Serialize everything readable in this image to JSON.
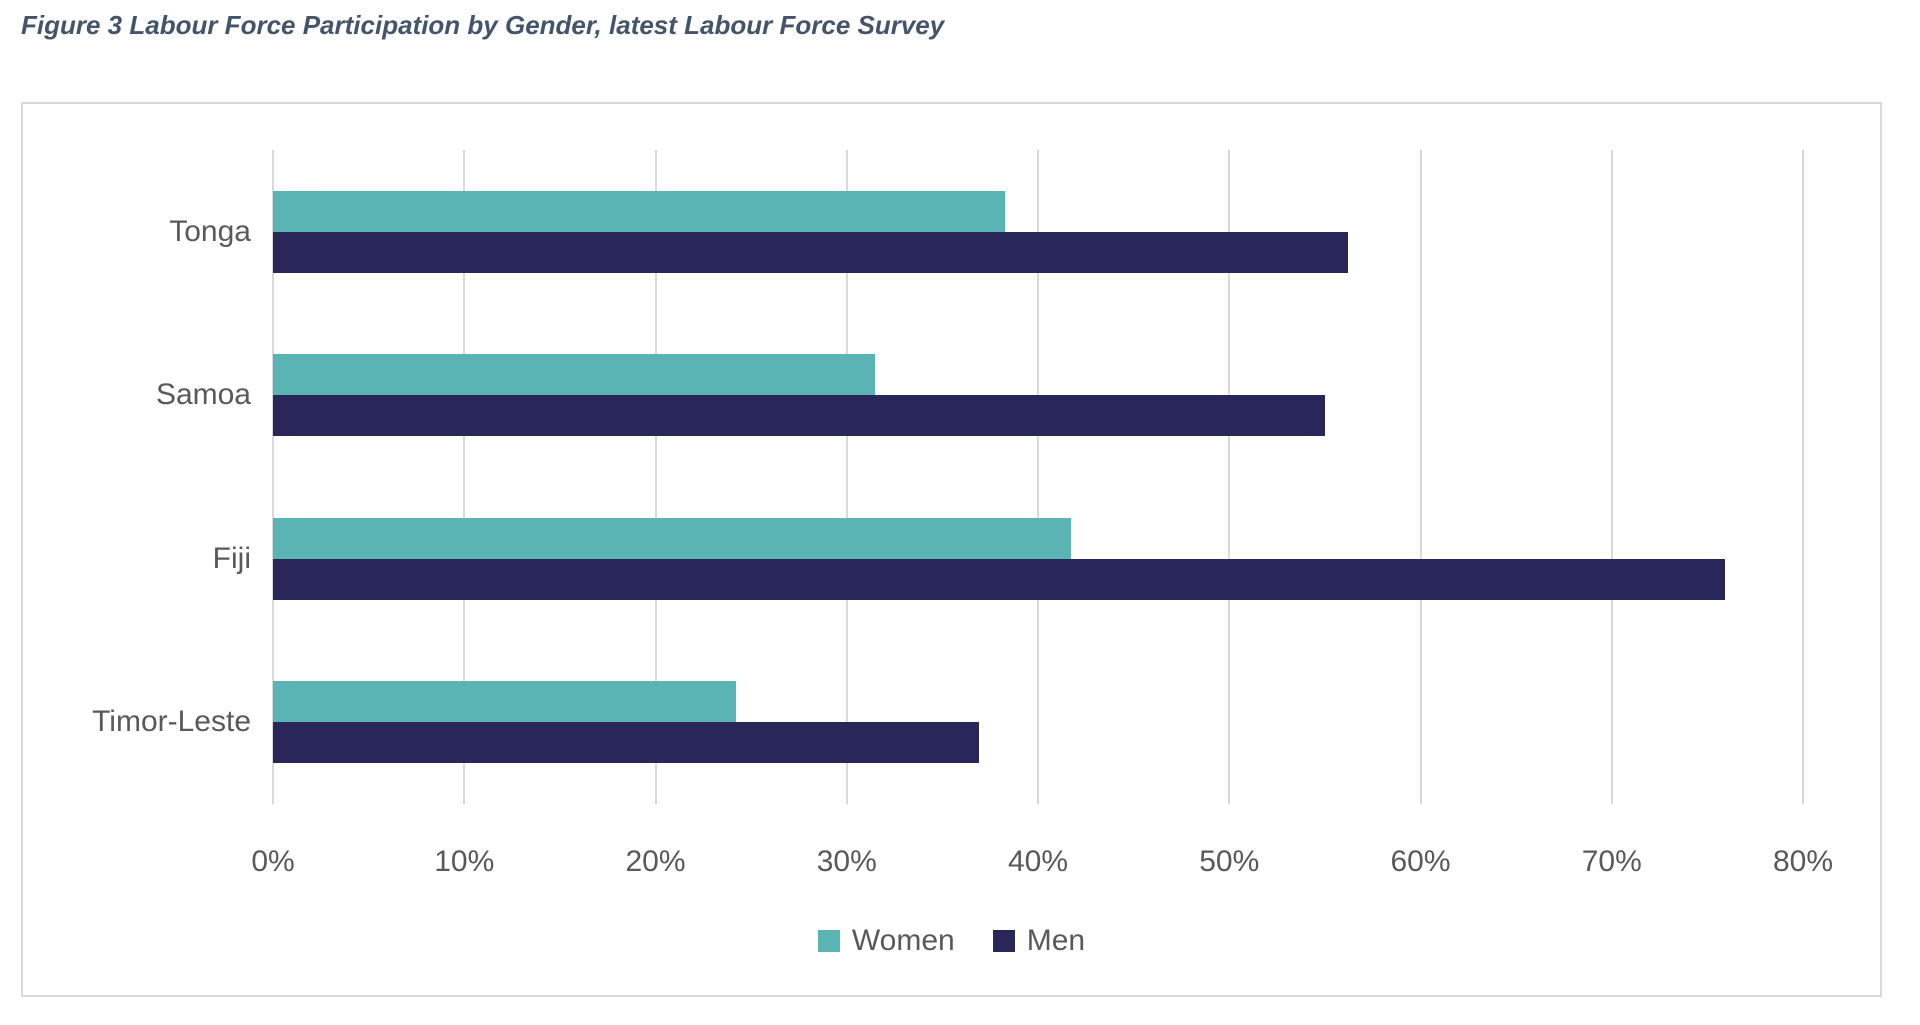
{
  "title": "Figure 3 Labour Force Participation by Gender, latest Labour Force Survey",
  "colors": {
    "title_text": "#44546A",
    "axis_text": "#595959",
    "gridline": "#D9D9D9",
    "frame_border": "#D9D9D9",
    "background": "#FFFFFF",
    "women_series": "#5BB4B4",
    "men_series": "#29275A"
  },
  "chart_data": {
    "type": "bar",
    "orientation": "horizontal",
    "title": "Figure 3 Labour Force Participation by Gender, latest Labour Force Survey",
    "categories": [
      "Tonga",
      "Samoa",
      "Fiji",
      "Timor-Leste"
    ],
    "series": [
      {
        "name": "Women",
        "color": "#5BB4B4",
        "values": [
          38.3,
          31.5,
          41.7,
          24.2
        ]
      },
      {
        "name": "Men",
        "color": "#29275A",
        "values": [
          56.2,
          55.0,
          75.9,
          36.9
        ]
      }
    ],
    "x_ticks": [
      "0%",
      "10%",
      "20%",
      "30%",
      "40%",
      "50%",
      "60%",
      "70%",
      "80%"
    ],
    "xlim": [
      0,
      80
    ],
    "xlabel": "",
    "ylabel": "",
    "grid": "vertical-only",
    "legend_position": "bottom-center",
    "value_unit": "percent"
  }
}
